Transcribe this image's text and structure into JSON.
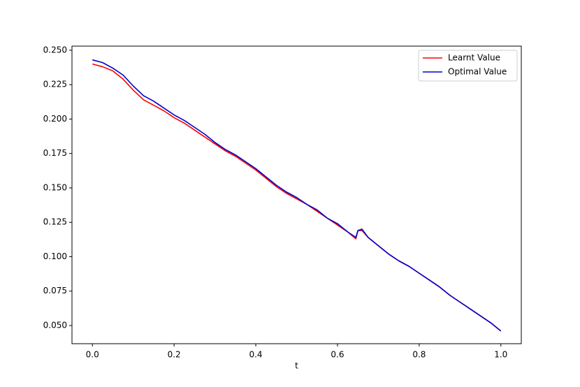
{
  "chart_data": {
    "type": "line",
    "xlabel": "t",
    "x": [
      0,
      0.025,
      0.05,
      0.075,
      0.1,
      0.125,
      0.15,
      0.175,
      0.2,
      0.225,
      0.25,
      0.275,
      0.3,
      0.325,
      0.35,
      0.375,
      0.4,
      0.425,
      0.45,
      0.475,
      0.5,
      0.525,
      0.55,
      0.575,
      0.6,
      0.625,
      0.645,
      0.65,
      0.66,
      0.675,
      0.7,
      0.725,
      0.75,
      0.775,
      0.8,
      0.825,
      0.85,
      0.875,
      0.9,
      0.925,
      0.95,
      0.975,
      1.0
    ],
    "series": [
      {
        "name": "Learnt Value",
        "color": "#ff0000",
        "values": [
          0.24,
          0.238,
          0.235,
          0.229,
          0.221,
          0.214,
          0.21,
          0.206,
          0.201,
          0.197,
          0.192,
          0.187,
          0.182,
          0.177,
          0.173,
          0.168,
          0.163,
          0.157,
          0.151,
          0.146,
          0.142,
          0.138,
          0.133,
          0.128,
          0.123,
          0.118,
          0.113,
          0.119,
          0.119,
          0.114,
          0.108,
          0.102,
          0.097,
          0.093,
          0.088,
          0.083,
          0.078,
          0.072,
          0.067,
          0.062,
          0.057,
          0.052,
          0.046
        ]
      },
      {
        "name": "Optimal Value",
        "color": "#0000cc",
        "values": [
          0.243,
          0.241,
          0.237,
          0.232,
          0.224,
          0.217,
          0.213,
          0.208,
          0.203,
          0.199,
          0.194,
          0.189,
          0.183,
          0.178,
          0.174,
          0.169,
          0.164,
          0.158,
          0.152,
          0.147,
          0.143,
          0.138,
          0.134,
          0.128,
          0.124,
          0.118,
          0.114,
          0.119,
          0.12,
          0.114,
          0.108,
          0.102,
          0.097,
          0.093,
          0.088,
          0.083,
          0.078,
          0.072,
          0.067,
          0.062,
          0.057,
          0.052,
          0.046
        ]
      }
    ],
    "xlim": [
      -0.05,
      1.05
    ],
    "xticks": [
      {
        "value": 0,
        "label": "0.0"
      },
      0.2,
      0.4,
      0.6,
      0.8,
      {
        "value": 1,
        "label": "1.0"
      }
    ],
    "ylim": [
      0.0368,
      0.253
    ],
    "yticks": [
      {
        "value": 0.05,
        "label": "0.050"
      },
      {
        "value": 0.075,
        "label": "0.075"
      },
      {
        "value": 0.1,
        "label": "0.100"
      },
      {
        "value": 0.125,
        "label": "0.125"
      },
      {
        "value": 0.15,
        "label": "0.150"
      },
      {
        "value": 0.175,
        "label": "0.175"
      },
      {
        "value": 0.2,
        "label": "0.200"
      },
      {
        "value": 0.225,
        "label": "0.225"
      },
      {
        "value": 0.25,
        "label": "0.250"
      }
    ],
    "legend": "upper right"
  }
}
